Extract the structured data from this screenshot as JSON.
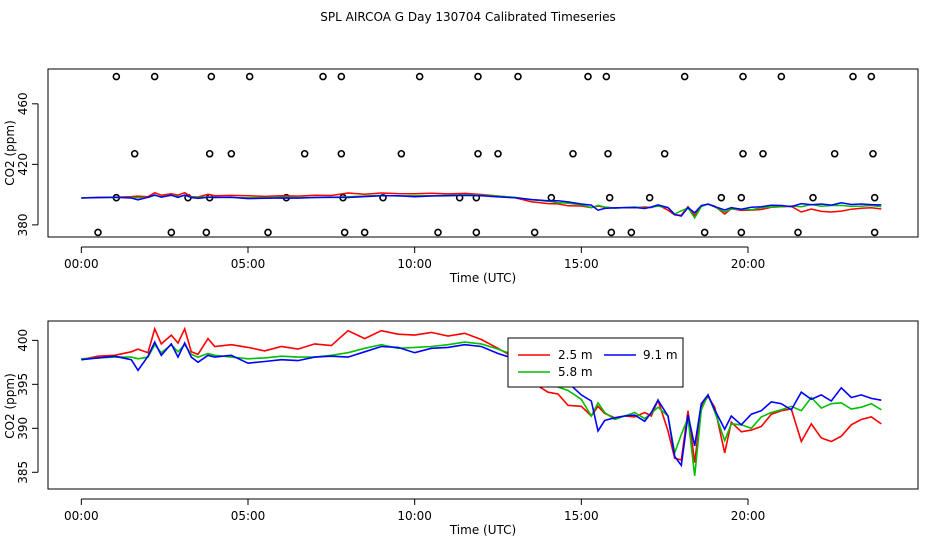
{
  "chart_data": [
    {
      "type": "scatter",
      "title": "SPL AIRCOA G  Day 130704  Calibrated Timeseries",
      "xlabel": "Time (UTC)",
      "ylabel": "CO2 (ppm)",
      "xlim": [
        -1,
        25.1
      ],
      "ylim": [
        372,
        483
      ],
      "xticks": [
        0,
        5,
        10,
        15,
        20
      ],
      "xtick_labels": [
        "00:00",
        "05:00",
        "10:00",
        "15:00",
        "20:00"
      ],
      "yticks": [
        380,
        420,
        460
      ],
      "ytick_labels": [
        "380",
        "420",
        "460"
      ],
      "series_colors": [
        "#ff0000",
        "#00c000",
        "#0000ff"
      ],
      "calibration_points": {
        "x": [
          1.05,
          2.2,
          3.9,
          5.05,
          7.25,
          7.8,
          10.15,
          11.9,
          13.1,
          15.2,
          15.75,
          18.1,
          19.85,
          21.0,
          23.15,
          23.7,
          1.6,
          3.85,
          4.5,
          6.7,
          7.8,
          9.6,
          11.9,
          12.5,
          14.75,
          15.8,
          17.5,
          19.85,
          20.45,
          22.6,
          23.75,
          1.05,
          3.2,
          3.85,
          6.15,
          7.85,
          9.05,
          11.35,
          11.85,
          14.1,
          15.85,
          17.05,
          19.2,
          19.8,
          21.95,
          23.8,
          0.5,
          2.7,
          3.75,
          5.6,
          7.9,
          8.5,
          10.7,
          11.85,
          13.6,
          15.9,
          16.5,
          18.7,
          19.8,
          21.5,
          23.8
        ],
        "y": [
          478,
          478,
          478,
          478,
          478,
          478,
          478,
          478,
          478,
          478,
          478,
          478,
          478,
          478,
          478,
          478,
          427,
          427,
          427,
          427,
          427,
          427,
          427,
          427,
          427,
          427,
          427,
          427,
          427,
          427,
          427,
          398,
          398,
          398,
          398,
          398,
          398,
          398,
          398,
          398,
          398,
          398,
          398,
          398,
          398,
          398,
          375,
          375,
          375,
          375,
          375,
          375,
          375,
          375,
          375,
          375,
          375,
          375,
          375,
          375,
          375
        ]
      }
    },
    {
      "type": "line",
      "xlabel": "Time (UTC)",
      "ylabel": "CO2 (ppm)",
      "xlim": [
        -1,
        25.1
      ],
      "ylim": [
        383.1,
        402.2
      ],
      "xticks": [
        0,
        5,
        10,
        15,
        20
      ],
      "xtick_labels": [
        "00:00",
        "05:00",
        "10:00",
        "15:00",
        "20:00"
      ],
      "yticks": [
        385,
        390,
        395,
        400
      ],
      "ytick_labels": [
        "385",
        "390",
        "395",
        "400"
      ],
      "legend": {
        "position": "top-center",
        "entries": [
          "2.5 m",
          "5.8 m",
          "9.1 m"
        ]
      },
      "x": [
        0.0,
        0.5,
        1.0,
        1.5,
        1.7,
        2.0,
        2.2,
        2.4,
        2.7,
        2.9,
        3.1,
        3.3,
        3.5,
        3.8,
        4.0,
        4.5,
        5.0,
        5.5,
        6.0,
        6.5,
        7.0,
        7.5,
        8.0,
        8.5,
        9.0,
        9.5,
        10.0,
        10.5,
        11.0,
        11.5,
        12.0,
        12.5,
        13.0,
        13.5,
        14.0,
        14.3,
        14.6,
        15.0,
        15.3,
        15.5,
        15.7,
        16.0,
        16.3,
        16.6,
        16.9,
        17.1,
        17.3,
        17.6,
        17.8,
        18.0,
        18.2,
        18.4,
        18.6,
        18.8,
        19.0,
        19.3,
        19.5,
        19.8,
        20.1,
        20.4,
        20.7,
        21.0,
        21.3,
        21.6,
        21.9,
        22.2,
        22.5,
        22.8,
        23.1,
        23.4,
        23.7,
        24.0
      ],
      "series": [
        {
          "name": "2.5 m",
          "color": "#ff0000",
          "values": [
            397.8,
            398.2,
            398.3,
            398.7,
            399.0,
            398.6,
            401.3,
            399.6,
            400.6,
            399.7,
            401.3,
            398.7,
            398.4,
            400.2,
            399.3,
            399.5,
            399.2,
            398.8,
            399.3,
            399.0,
            399.6,
            399.4,
            401.1,
            400.2,
            401.1,
            400.7,
            400.6,
            400.9,
            400.5,
            400.8,
            400.1,
            399.1,
            398.0,
            395.3,
            394.1,
            393.9,
            392.6,
            392.5,
            391.4,
            392.5,
            391.7,
            391.2,
            391.4,
            391.3,
            391.8,
            391.4,
            393.2,
            389.7,
            386.6,
            386.4,
            392.0,
            386.1,
            392.5,
            393.6,
            392.4,
            387.2,
            390.7,
            389.6,
            389.8,
            390.2,
            391.6,
            392.0,
            392.2,
            388.5,
            390.5,
            388.9,
            388.5,
            389.1,
            390.4,
            391.0,
            391.3,
            390.5
          ]
        },
        {
          "name": "5.8 m",
          "color": "#00c000",
          "values": [
            397.9,
            398.0,
            398.1,
            398.1,
            397.9,
            398.1,
            399.5,
            398.6,
            399.5,
            398.7,
            399.5,
            398.4,
            398.1,
            398.5,
            398.3,
            398.1,
            397.9,
            398.0,
            398.2,
            398.1,
            398.1,
            398.3,
            398.6,
            399.1,
            399.5,
            399.1,
            399.2,
            399.3,
            399.5,
            399.8,
            399.6,
            399.0,
            398.3,
            396.6,
            395.6,
            394.7,
            394.3,
            393.3,
            391.4,
            392.9,
            391.8,
            391.0,
            391.4,
            391.8,
            391.1,
            391.7,
            392.4,
            391.4,
            387.2,
            389.3,
            391.2,
            384.6,
            392.1,
            393.8,
            391.9,
            388.6,
            390.5,
            390.4,
            390.0,
            391.3,
            391.8,
            392.1,
            392.5,
            392.0,
            393.5,
            392.3,
            392.8,
            392.9,
            392.2,
            392.4,
            392.8,
            392.1
          ]
        },
        {
          "name": "9.1 m",
          "color": "#0000ff",
          "values": [
            397.8,
            398.0,
            398.2,
            397.8,
            396.6,
            398.2,
            399.8,
            398.3,
            399.6,
            398.1,
            399.7,
            398.1,
            397.5,
            398.3,
            398.1,
            398.3,
            397.4,
            397.6,
            397.8,
            397.7,
            398.1,
            398.2,
            398.1,
            398.7,
            399.3,
            399.2,
            398.6,
            399.1,
            399.2,
            399.5,
            399.3,
            398.5,
            397.9,
            396.8,
            395.9,
            396.0,
            395.2,
            393.8,
            393.1,
            389.7,
            390.9,
            391.2,
            391.4,
            391.5,
            390.8,
            391.8,
            393.2,
            391.4,
            386.8,
            385.8,
            391.5,
            388.0,
            392.8,
            393.8,
            392.1,
            389.9,
            391.4,
            390.4,
            391.6,
            392.0,
            393.0,
            392.8,
            392.1,
            394.1,
            393.3,
            393.8,
            393.1,
            394.6,
            393.5,
            393.8,
            393.4,
            393.2
          ]
        }
      ]
    }
  ]
}
